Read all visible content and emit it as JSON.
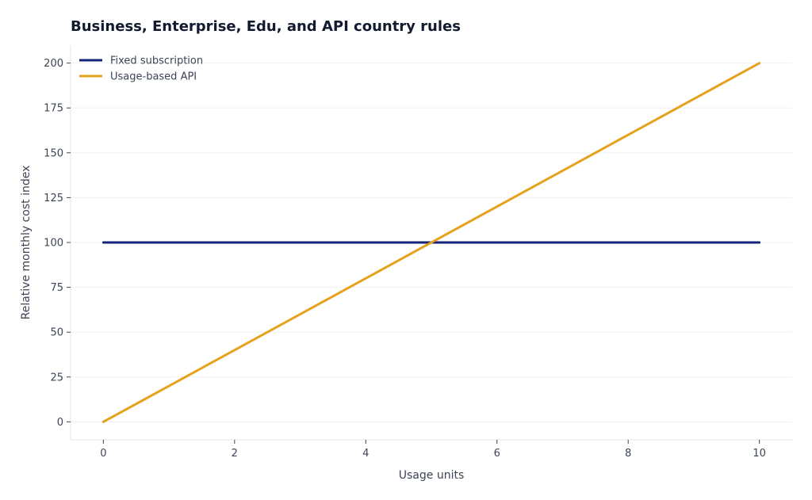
{
  "chart_data": {
    "type": "line",
    "title": "Business, Enterprise, Edu, and API country rules",
    "xlabel": "Usage units",
    "ylabel": "Relative monthly cost index",
    "xlim": [
      -0.5,
      10.5
    ],
    "ylim": [
      -10,
      210
    ],
    "x_ticks": [
      0,
      2,
      4,
      6,
      8,
      10
    ],
    "y_ticks": [
      0,
      25,
      50,
      75,
      100,
      125,
      150,
      175,
      200
    ],
    "x_tick_labels": [
      "0",
      "2",
      "4",
      "6",
      "8",
      "10"
    ],
    "y_tick_labels": [
      "0",
      "25",
      "50",
      "75",
      "100",
      "125",
      "150",
      "175",
      "200"
    ],
    "grid": "horizontal",
    "legend_position": "top-left",
    "series": [
      {
        "name": "Fixed subscription",
        "color": "#14247a",
        "x": [
          0,
          10
        ],
        "y": [
          100,
          100
        ]
      },
      {
        "name": "Usage-based API",
        "color": "#e6a11c",
        "x": [
          0,
          10
        ],
        "y": [
          0,
          200
        ]
      }
    ]
  }
}
